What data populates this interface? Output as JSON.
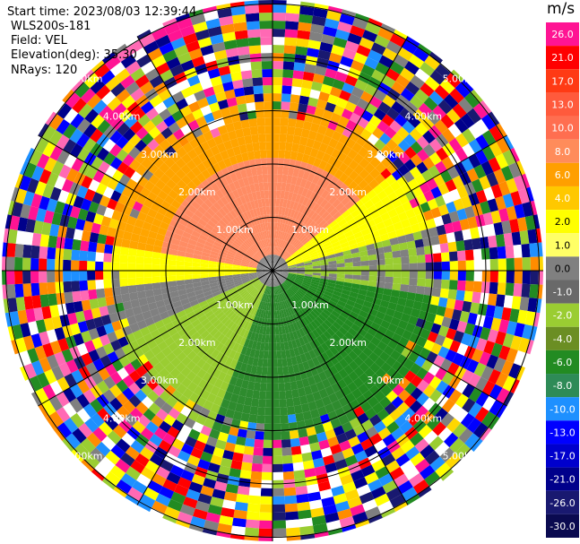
{
  "header": {
    "start_time": "Start time: 2023/08/03 12:39:44",
    "instrument": "WLS200s-181",
    "field": "Field: VEL",
    "elevation": "Elevation(deg): 35.30",
    "nrays": "NRays: 120"
  },
  "colorbar": {
    "unit": "m/s",
    "entries": [
      {
        "label": "26.0",
        "color": "#ff1493"
      },
      {
        "label": "21.0",
        "color": "#ff0000"
      },
      {
        "label": "17.0",
        "color": "#ff3a14"
      },
      {
        "label": "13.0",
        "color": "#ff5a3c"
      },
      {
        "label": "10.0",
        "color": "#ff6e50"
      },
      {
        "label": "8.0",
        "color": "#ff8c5a"
      },
      {
        "label": "6.0",
        "color": "#ff9f00"
      },
      {
        "label": "4.0",
        "color": "#ffc800"
      },
      {
        "label": "2.0",
        "color": "#ffff00"
      },
      {
        "label": "1.0",
        "color": "#ffff66"
      },
      {
        "label": "0.0",
        "color": "#808080"
      },
      {
        "label": "-1.0",
        "color": "#696969"
      },
      {
        "label": "-2.0",
        "color": "#9acd32"
      },
      {
        "label": "-4.0",
        "color": "#6b8e23"
      },
      {
        "label": "-6.0",
        "color": "#228b22"
      },
      {
        "label": "-8.0",
        "color": "#2e8b57"
      },
      {
        "label": "-10.0",
        "color": "#1e90ff"
      },
      {
        "label": "-13.0",
        "color": "#0000ff"
      },
      {
        "label": "-17.0",
        "color": "#0000cd"
      },
      {
        "label": "-21.0",
        "color": "#00008b"
      },
      {
        "label": "-26.0",
        "color": "#191970"
      },
      {
        "label": "-30.0",
        "color": "#0a0a50"
      }
    ]
  },
  "range_rings": {
    "labels": [
      "1.00km",
      "2.00km",
      "3.00km",
      "4.00km",
      "5.00km"
    ]
  }
}
